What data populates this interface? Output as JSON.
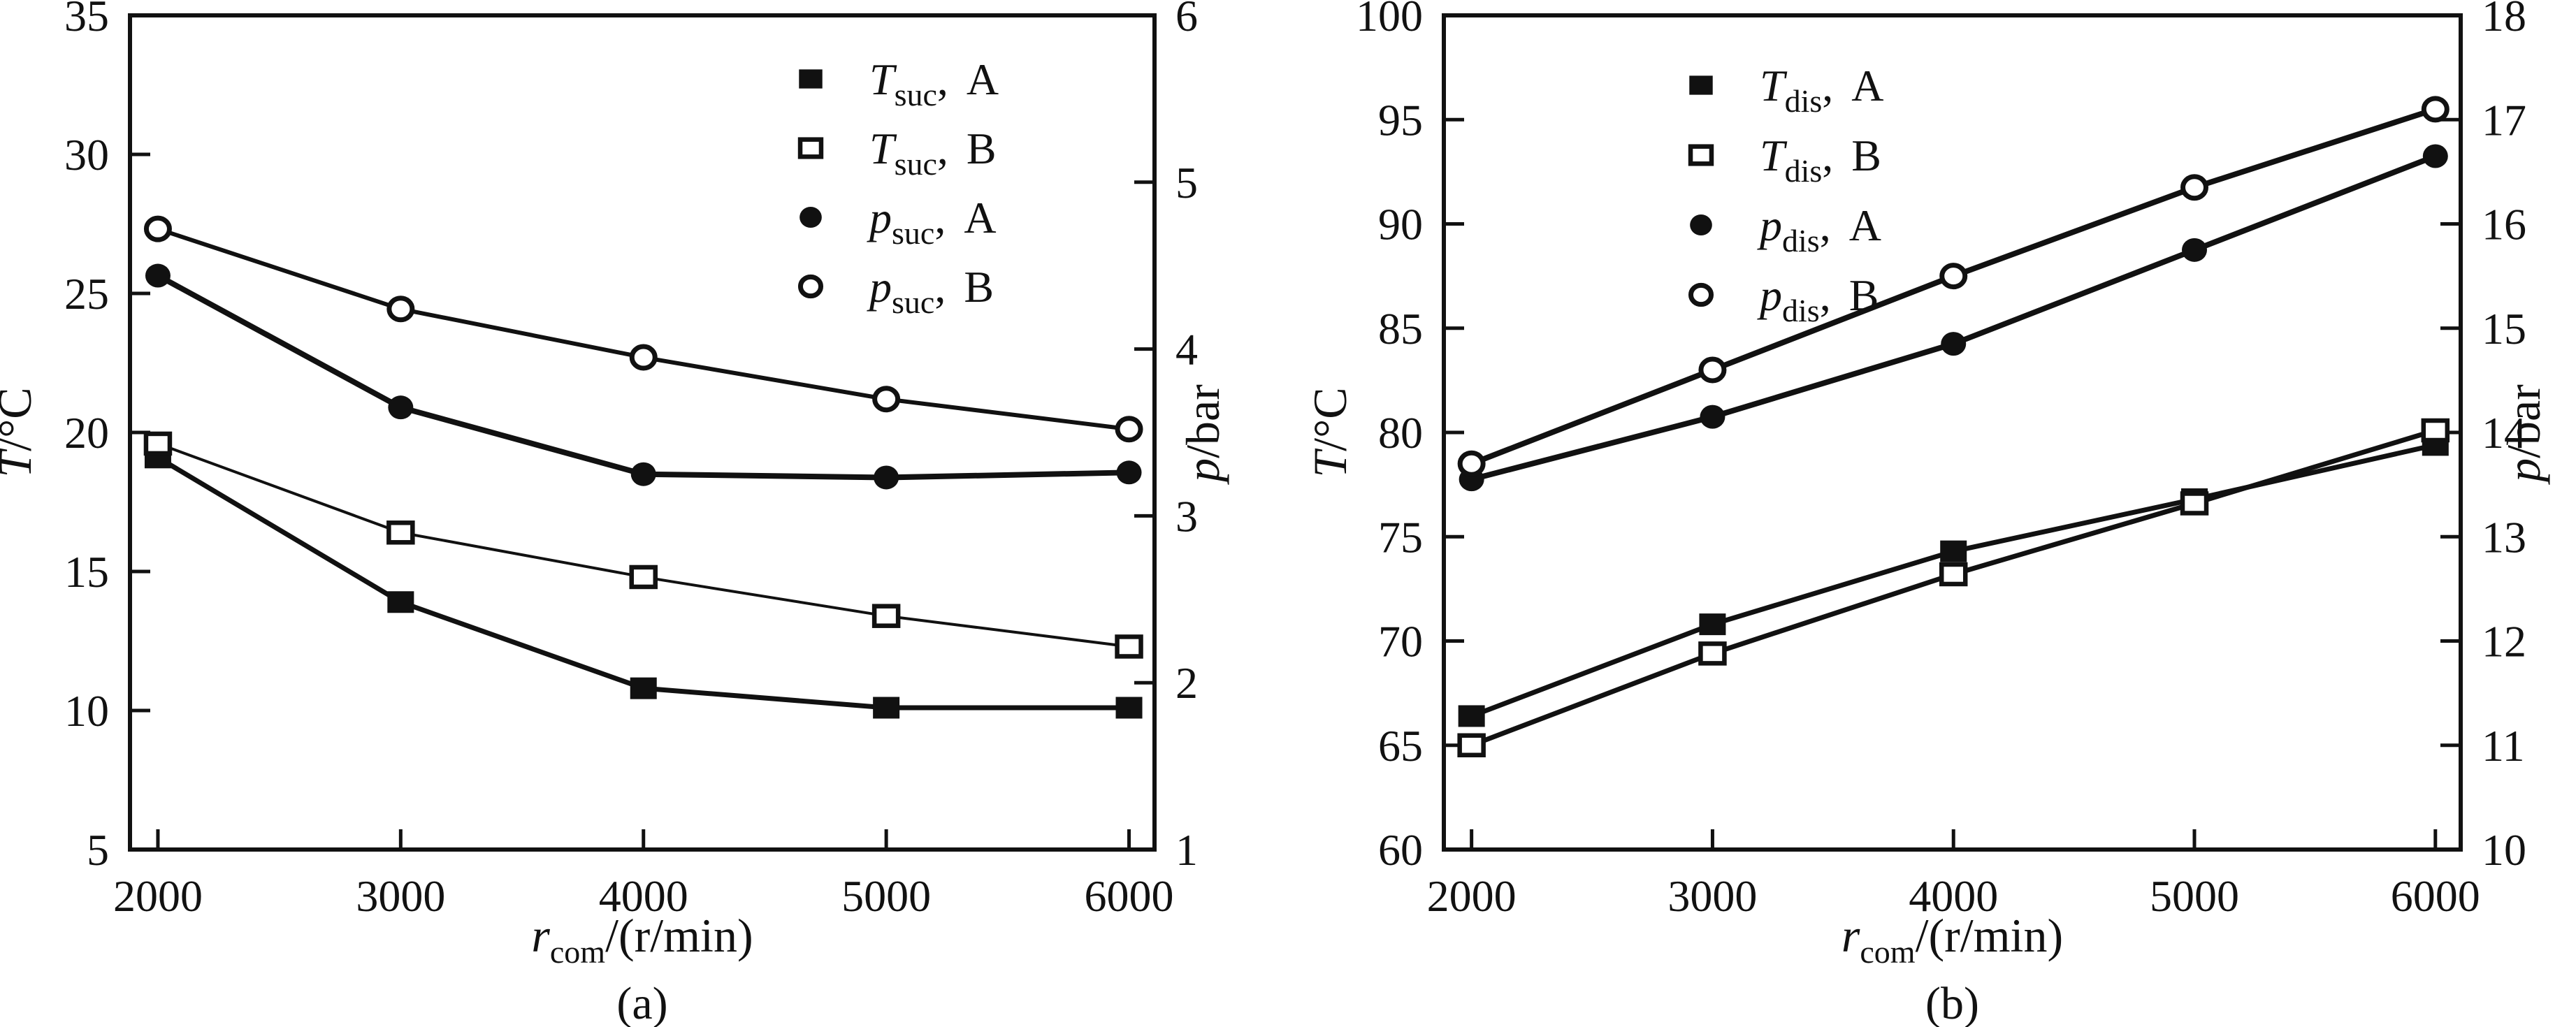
{
  "figure": {
    "background": "#ffffff",
    "ink": "#111111"
  },
  "chart_data": [
    {
      "id": "a",
      "type": "line",
      "caption": "(a)",
      "x_label_plain": "r_com/(r/min)",
      "x_axis": {
        "title": {
          "base": "r",
          "sub": "com",
          "rest": "/(r/min)"
        },
        "lim": [
          1885,
          6105
        ],
        "ticks": [
          2000,
          3000,
          4000,
          5000,
          6000
        ]
      },
      "left_axis": {
        "label_plain": "T/°C",
        "title": {
          "base": "T",
          "sub": "",
          "rest": "/°C"
        },
        "lim": [
          5,
          35
        ],
        "labels": [
          35,
          30,
          25,
          20,
          15,
          10,
          5
        ],
        "marks": [
          30,
          25,
          20,
          15,
          10
        ]
      },
      "right_axis": {
        "label_plain": "p/bar",
        "title": {
          "base": "p",
          "sub": "",
          "rest": "/bar"
        },
        "lim": [
          1,
          6
        ],
        "labels": [
          6,
          5,
          4,
          3,
          2,
          1
        ],
        "marks": [
          5,
          4,
          3,
          2
        ]
      },
      "x": [
        2000,
        3000,
        4000,
        5000,
        6000
      ],
      "series": [
        {
          "key": "T_suc_A",
          "label_plain": "T_suc, A",
          "label": {
            "base": "T",
            "sub": "suc",
            "variant": "A"
          },
          "marker": "filled-square",
          "axis": "left",
          "values": [
            19.1,
            13.9,
            10.8,
            10.1,
            10.1
          ]
        },
        {
          "key": "T_suc_B",
          "label_plain": "T_suc, B",
          "label": {
            "base": "T",
            "sub": "suc",
            "variant": "B"
          },
          "marker": "open-square",
          "axis": "left",
          "values": [
            19.6,
            16.4,
            14.8,
            13.4,
            12.3
          ]
        },
        {
          "key": "p_suc_A",
          "label_plain": "p_suc, A",
          "label": {
            "base": "p",
            "sub": "suc",
            "variant": "A"
          },
          "marker": "filled-circle",
          "axis": "right",
          "values": [
            4.44,
            3.65,
            3.25,
            3.23,
            3.26
          ]
        },
        {
          "key": "p_suc_B",
          "label_plain": "p_suc, B",
          "label": {
            "base": "p",
            "sub": "suc",
            "variant": "B"
          },
          "marker": "open-circle",
          "axis": "right",
          "values": [
            4.72,
            4.24,
            3.95,
            3.7,
            3.52
          ]
        }
      ]
    },
    {
      "id": "b",
      "type": "line",
      "caption": "(b)",
      "x_label_plain": "r_com/(r/min)",
      "x_axis": {
        "title": {
          "base": "r",
          "sub": "com",
          "rest": "/(r/min)"
        },
        "lim": [
          1885,
          6105
        ],
        "ticks": [
          2000,
          3000,
          4000,
          5000,
          6000
        ]
      },
      "left_axis": {
        "label_plain": "T/°C",
        "title": {
          "base": "T",
          "sub": "",
          "rest": "/°C"
        },
        "lim": [
          60,
          100
        ],
        "labels": [
          100,
          95,
          90,
          85,
          80,
          75,
          70,
          65,
          60
        ],
        "marks": [
          95,
          90,
          85,
          80,
          75,
          70,
          65
        ]
      },
      "right_axis": {
        "label_plain": "p/bar",
        "title": {
          "base": "p",
          "sub": "",
          "rest": "/bar"
        },
        "lim": [
          10,
          18
        ],
        "labels": [
          18,
          17,
          16,
          15,
          14,
          13,
          12,
          11,
          10
        ],
        "marks": [
          17,
          16,
          15,
          14,
          13,
          12,
          11
        ]
      },
      "x": [
        2000,
        3000,
        4000,
        5000,
        6000
      ],
      "series": [
        {
          "key": "T_dis_A",
          "label_plain": "T_dis, A",
          "label": {
            "base": "T",
            "sub": "dis",
            "variant": "A"
          },
          "marker": "filled-square",
          "axis": "left",
          "values": [
            66.4,
            70.8,
            74.3,
            76.8,
            79.4
          ]
        },
        {
          "key": "T_dis_B",
          "label_plain": "T_dis, B",
          "label": {
            "base": "T",
            "sub": "dis",
            "variant": "B"
          },
          "marker": "open-square",
          "axis": "left",
          "values": [
            65.0,
            69.4,
            73.2,
            76.6,
            80.1
          ]
        },
        {
          "key": "p_dis_A",
          "label_plain": "p_dis, A",
          "label": {
            "base": "p",
            "sub": "dis",
            "variant": "A"
          },
          "marker": "filled-circle",
          "axis": "right",
          "values": [
            13.55,
            14.15,
            14.85,
            15.75,
            16.65
          ]
        },
        {
          "key": "p_dis_B",
          "label_plain": "p_dis, B",
          "label": {
            "base": "p",
            "sub": "dis",
            "variant": "B"
          },
          "marker": "open-circle",
          "axis": "right",
          "values": [
            13.7,
            14.6,
            15.5,
            16.35,
            17.1
          ]
        }
      ]
    }
  ]
}
